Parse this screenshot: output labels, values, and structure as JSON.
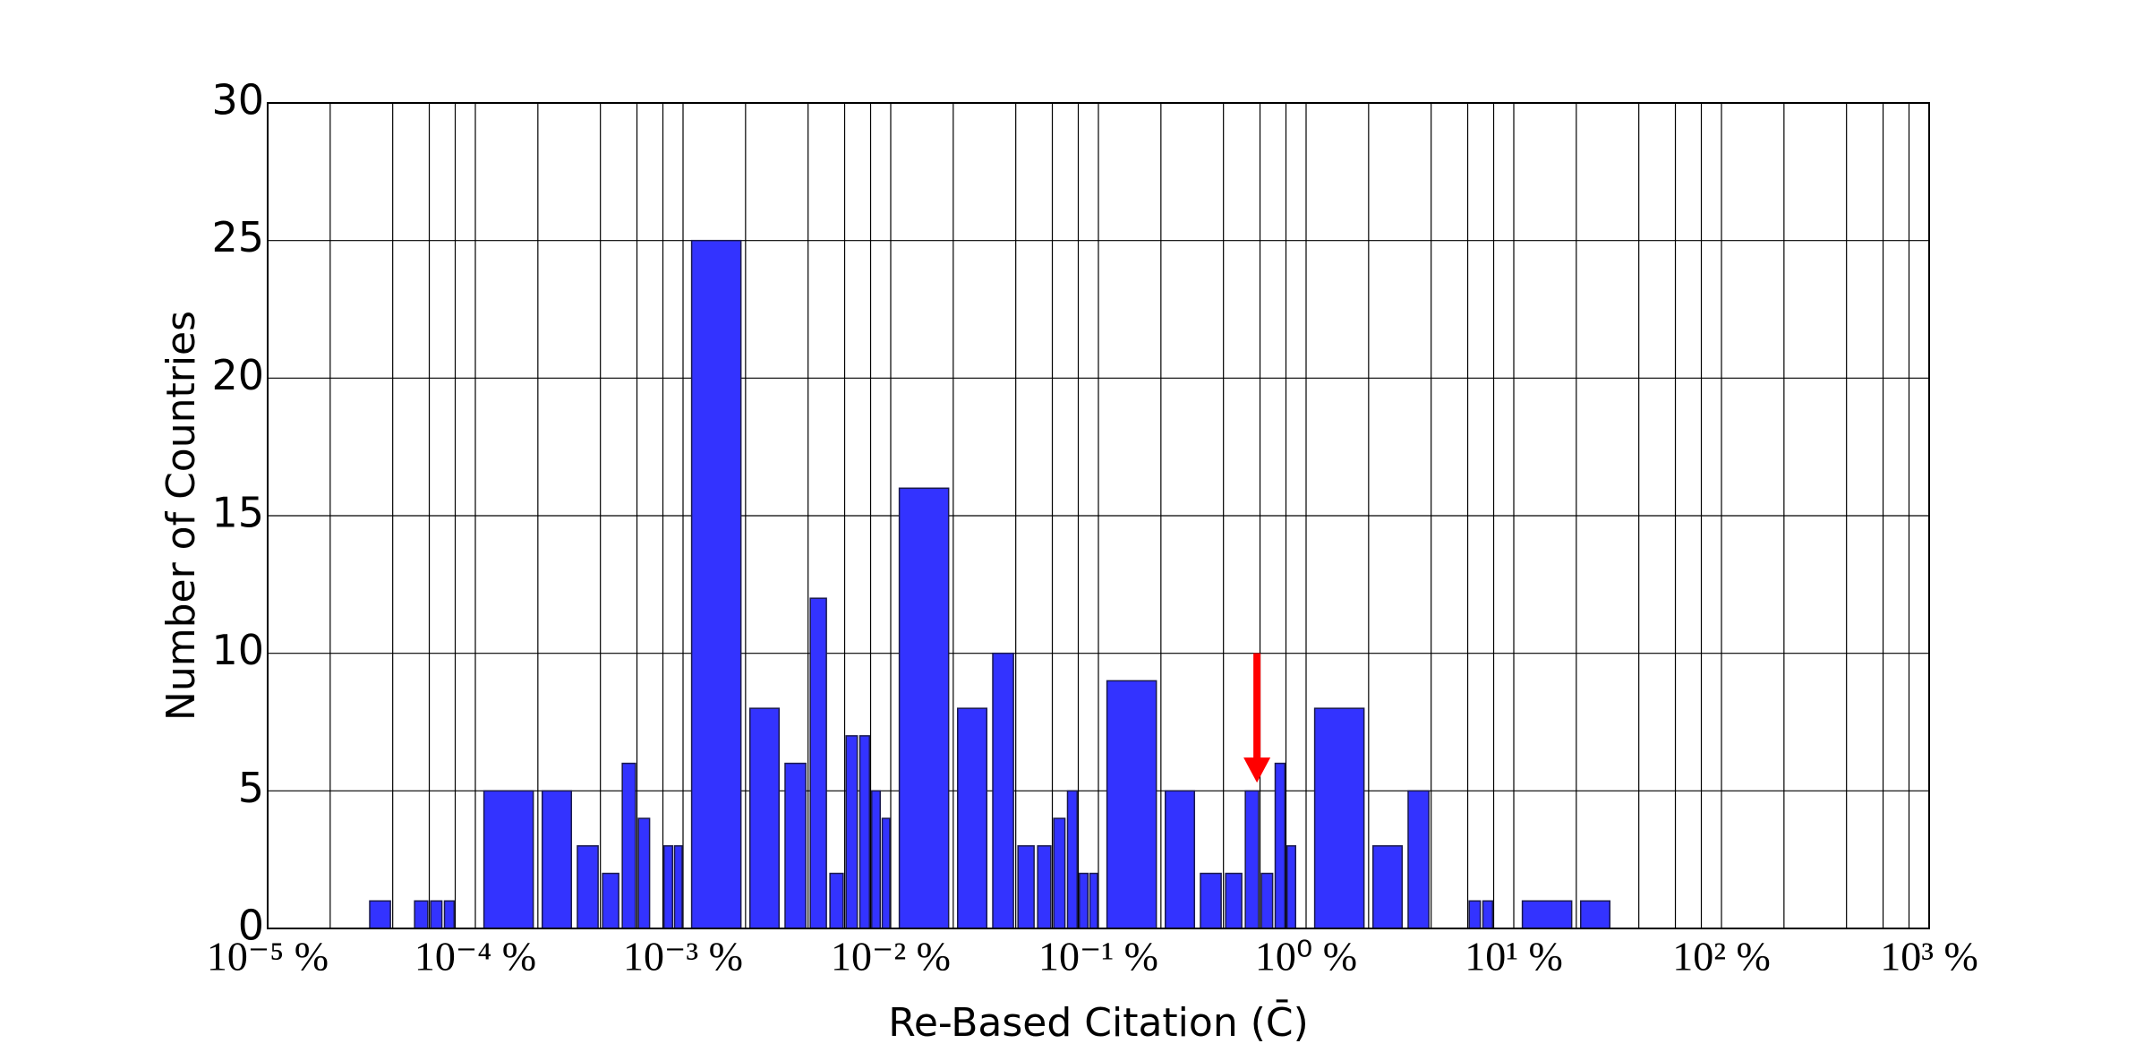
{
  "chart_data": {
    "type": "histogram",
    "xlabel": "Re-Based Citation (C̄)",
    "ylabel": "Number of Countries",
    "color": "#3333ff",
    "xscale": "log",
    "grid": true,
    "xlim": [
      1e-05,
      1000
    ],
    "ylim": [
      0,
      30
    ],
    "xticks": [
      {
        "value": 1e-05,
        "label": "10⁻⁵ %"
      },
      {
        "value": 0.0001,
        "label": "10⁻⁴ %"
      },
      {
        "value": 0.001,
        "label": "10⁻³ %"
      },
      {
        "value": 0.01,
        "label": "10⁻² %"
      },
      {
        "value": 0.1,
        "label": "10⁻¹ %"
      },
      {
        "value": 1,
        "label": "10⁰ %"
      },
      {
        "value": 10,
        "label": "10¹ %"
      },
      {
        "value": 100,
        "label": "10² %"
      },
      {
        "value": 1000,
        "label": "10³ %"
      }
    ],
    "x_minor_ticks": [
      2e-05,
      4e-05,
      6e-05,
      8e-05,
      0.0002,
      0.0004,
      0.0006,
      0.0008,
      0.002,
      0.004,
      0.006,
      0.008,
      0.02,
      0.04,
      0.06,
      0.08,
      0.2,
      0.4,
      0.6,
      0.8,
      2,
      4,
      6,
      8,
      20,
      40,
      60,
      80,
      200,
      400,
      600,
      800
    ],
    "yticks": [
      0,
      5,
      10,
      15,
      20,
      25,
      30
    ],
    "bar_left": [
      3.1e-05,
      5.1e-05,
      6.1e-05,
      7.1e-05,
      0.00011,
      0.00021,
      0.00031,
      0.00041,
      0.00051,
      0.00061,
      0.00081,
      0.00091,
      0.0011,
      0.0021,
      0.0031,
      0.0041,
      0.0051,
      0.0061,
      0.0071,
      0.0081,
      0.0091,
      0.011,
      0.021,
      0.031,
      0.041,
      0.051,
      0.061,
      0.071,
      0.081,
      0.091,
      0.11,
      0.21,
      0.31,
      0.41,
      0.51,
      0.61,
      0.71,
      0.81,
      1.1,
      2.1,
      3.1,
      6.1,
      7.1,
      11,
      21
    ],
    "bar_right": [
      3.9e-05,
      5.9e-05,
      6.9e-05,
      7.9e-05,
      0.00019,
      0.00029,
      0.00039,
      0.00049,
      0.00059,
      0.00069,
      0.00089,
      0.00099,
      0.0019,
      0.0029,
      0.0039,
      0.0049,
      0.0059,
      0.0069,
      0.0079,
      0.0089,
      0.0099,
      0.019,
      0.029,
      0.039,
      0.049,
      0.059,
      0.069,
      0.079,
      0.089,
      0.099,
      0.19,
      0.29,
      0.39,
      0.49,
      0.59,
      0.69,
      0.79,
      0.89,
      1.9,
      2.9,
      3.9,
      6.9,
      7.9,
      19,
      29
    ],
    "values": [
      1,
      1,
      1,
      1,
      5,
      5,
      3,
      2,
      6,
      4,
      3,
      3,
      25,
      8,
      6,
      12,
      2,
      7,
      7,
      5,
      4,
      16,
      8,
      10,
      3,
      3,
      4,
      5,
      2,
      2,
      9,
      5,
      2,
      2,
      5,
      2,
      6,
      3,
      8,
      3,
      5,
      1,
      1,
      1,
      1
    ],
    "arrow": {
      "x": 0.58,
      "from": 10,
      "to": 5.3,
      "color": "#ff0000"
    }
  }
}
